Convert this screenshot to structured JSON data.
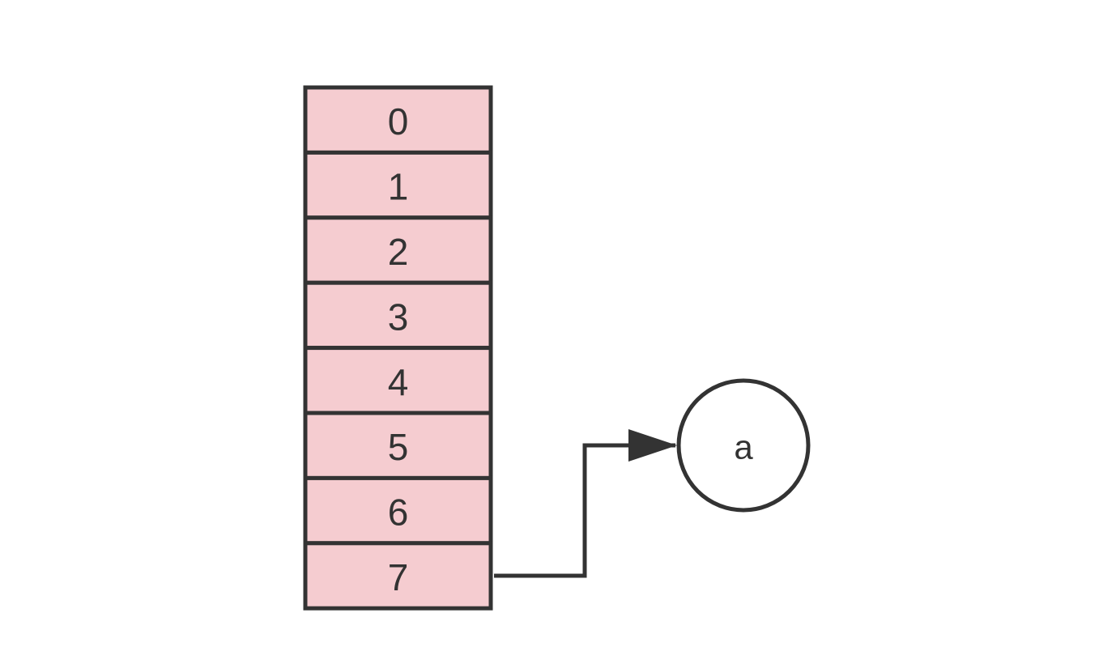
{
  "colors": {
    "cell_fill": "#f5ccd0",
    "stroke": "#333333",
    "text": "#333333",
    "node_fill": "#ffffff",
    "background": "#ffffff"
  },
  "array": {
    "cells": [
      {
        "label": "0"
      },
      {
        "label": "1"
      },
      {
        "label": "2"
      },
      {
        "label": "3"
      },
      {
        "label": "4"
      },
      {
        "label": "5"
      },
      {
        "label": "6"
      },
      {
        "label": "7"
      }
    ]
  },
  "node": {
    "label": "a"
  },
  "edge": {
    "from_cell": "7",
    "to_node": "a"
  }
}
